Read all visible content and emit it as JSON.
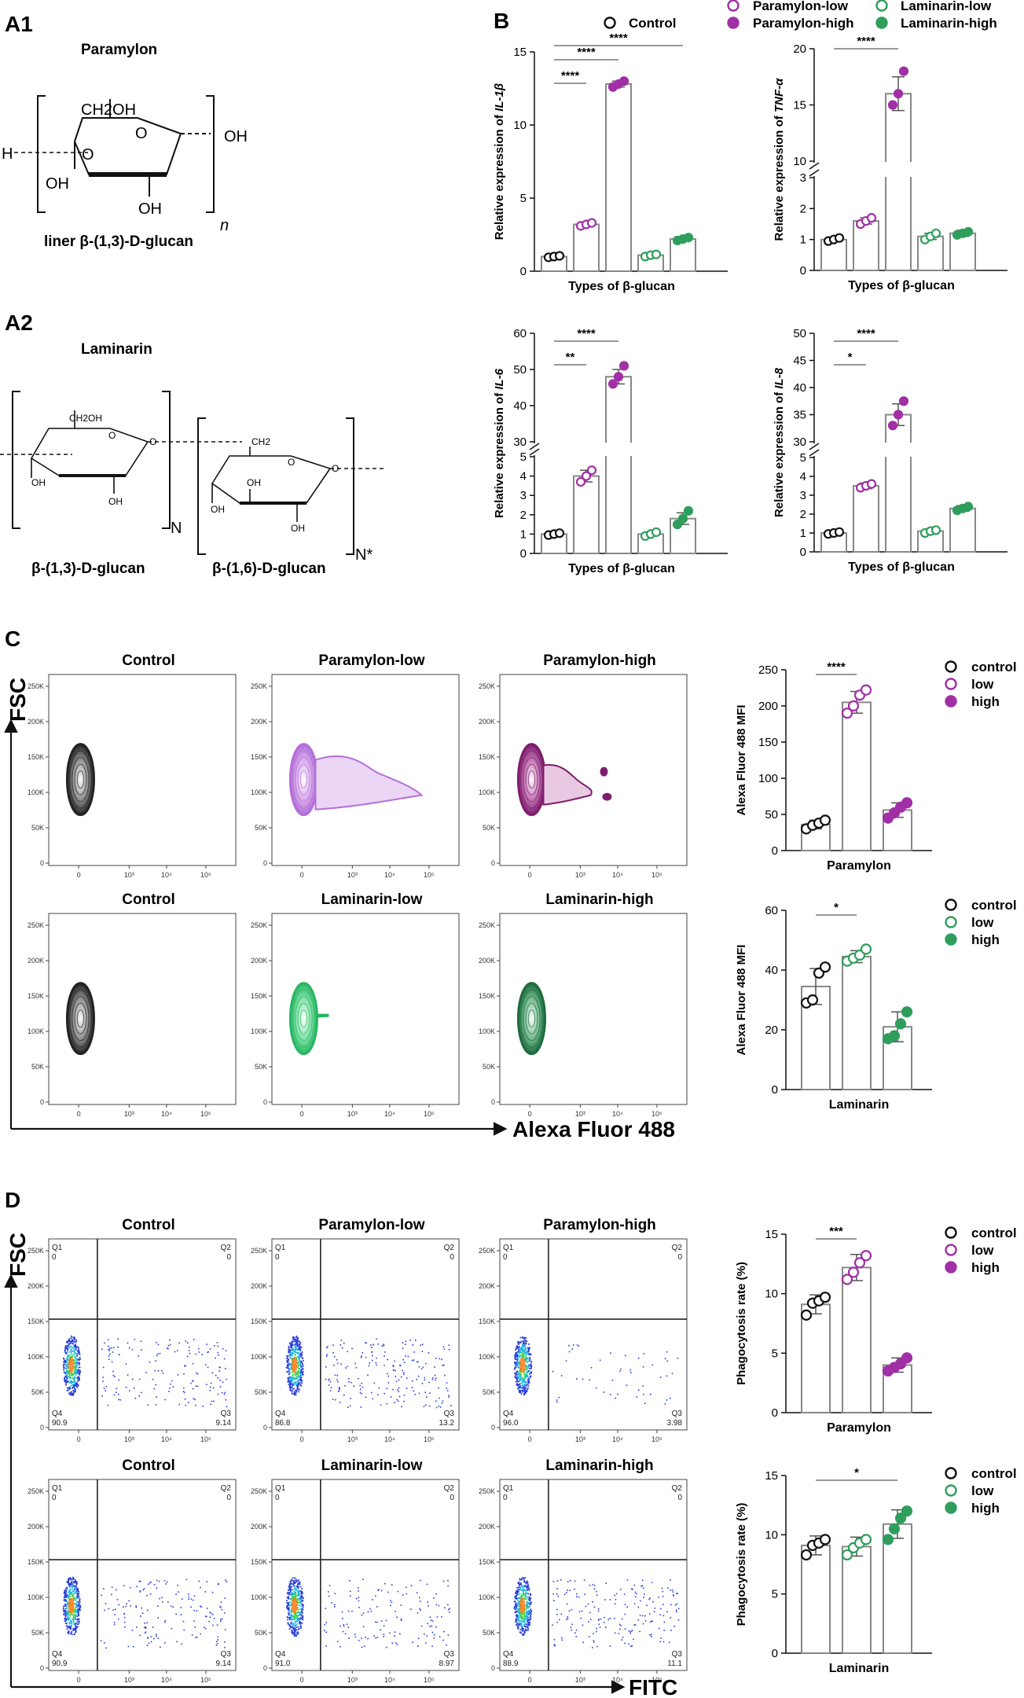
{
  "panel_labels": {
    "a1": "A1",
    "a2": "A2",
    "b": "B",
    "c": "C",
    "d": "D"
  },
  "chem": {
    "paramylon_title": "Paramylon",
    "laminarin_title": "Laminarin",
    "ch2oh": "CH2OH",
    "ch2oh_small": "CH2OH",
    "ch2_small": "CH2",
    "oh": "OH",
    "o": "O",
    "h": "H",
    "n": "n",
    "N": "N",
    "Nstar": "N*",
    "paramylon_caption": "liner β-(1,3)-D-glucan",
    "lam_caption_1": "β-(1,3)-D-glucan",
    "lam_caption_2": "β-(1,6)-D-glucan"
  },
  "colors": {
    "control": "#111111",
    "paramylon": "#a12fa6",
    "laminarin": "#2f9e5c",
    "bar": "#888888",
    "sig": "#777777"
  },
  "legend_b": {
    "control": "Control",
    "paramylon_low": "Paramylon-low",
    "paramylon_high": "Paramylon-high",
    "laminarin_low": "Laminarin-low",
    "laminarin_high": "Laminarin-high"
  },
  "legend_cd": {
    "control": "control",
    "low": "low",
    "high": "high"
  },
  "flow": {
    "c_titles": [
      "Control",
      "Paramylon-low",
      "Paramylon-high",
      "Control",
      "Laminarin-low",
      "Laminarin-high"
    ],
    "d_titles": [
      "Control",
      "Paramylon-low",
      "Paramylon-high",
      "Control",
      "Laminarin-low",
      "Laminarin-high"
    ],
    "y_ticks": [
      "250K",
      "200K",
      "150K",
      "100K",
      "50K",
      "0"
    ],
    "x_ticks": [
      "0",
      "10³",
      "10⁴",
      "10⁵"
    ],
    "fsc": "FSC",
    "alexa": "Alexa Fluor 488",
    "fitc": "FITC",
    "q_labels": [
      "Q1",
      "Q2",
      "Q3",
      "Q4"
    ],
    "quadrants": [
      {
        "q1": "0",
        "q2": "0",
        "q3": "9.14",
        "q4": "90.9"
      },
      {
        "q1": "0",
        "q2": "0",
        "q3": "13.2",
        "q4": "86.8"
      },
      {
        "q1": "0",
        "q2": "0",
        "q3": "3.98",
        "q4": "96.0"
      },
      {
        "q1": "0",
        "q2": "0",
        "q3": "9.14",
        "q4": "90.9"
      },
      {
        "q1": "0",
        "q2": "0",
        "q3": "8.97",
        "q4": "91.0"
      },
      {
        "q1": "0",
        "q2": "0",
        "q3": "11.1",
        "q4": "88.9"
      }
    ]
  },
  "chart_data": [
    {
      "id": "il1b",
      "type": "bar",
      "ylabel": "Relative expression of ",
      "gene": "IL-1β",
      "xlabel": "Types of β-glucan",
      "categories": [
        "Control",
        "Paramylon-low",
        "Paramylon-high",
        "Laminarin-low",
        "Laminarin-high"
      ],
      "values": [
        1.0,
        3.2,
        12.8,
        1.1,
        2.2
      ],
      "errors": [
        0.1,
        0.15,
        0.2,
        0.15,
        0.15
      ],
      "points": [
        [
          0.95,
          1.0,
          1.05
        ],
        [
          3.1,
          3.2,
          3.3
        ],
        [
          12.6,
          12.8,
          13.0
        ],
        [
          1.0,
          1.1,
          1.15
        ],
        [
          2.1,
          2.2,
          2.3
        ]
      ],
      "ylim": [
        0,
        15
      ],
      "yticks": [
        0,
        5,
        10,
        15
      ],
      "sig": [
        {
          "from": 0,
          "to": 1,
          "label": "****"
        },
        {
          "from": 0,
          "to": 2,
          "label": "****"
        },
        {
          "from": 0,
          "to": 4,
          "label": "****"
        }
      ]
    },
    {
      "id": "tnfa",
      "type": "bar",
      "ylabel": "Relative expression of ",
      "gene": "TNF-α",
      "xlabel": "Types of β-glucan",
      "categories": [
        "Control",
        "Paramylon-low",
        "Paramylon-high",
        "Laminarin-low",
        "Laminarin-high"
      ],
      "values": [
        1.0,
        1.6,
        16.0,
        1.1,
        1.2
      ],
      "errors": [
        0.05,
        0.1,
        1.5,
        0.1,
        0.1
      ],
      "points": [
        [
          0.95,
          1.0,
          1.05
        ],
        [
          1.5,
          1.6,
          1.7
        ],
        [
          15.0,
          16.0,
          18.0
        ],
        [
          1.0,
          1.1,
          1.2
        ],
        [
          1.15,
          1.2,
          1.25
        ]
      ],
      "axis_break": {
        "lower": [
          0,
          3
        ],
        "upper": [
          10,
          20
        ]
      },
      "yticks_lower": [
        0,
        1,
        2,
        3
      ],
      "yticks_upper": [
        10,
        15,
        20
      ],
      "sig": [
        {
          "from": 0,
          "to": 2,
          "label": "****"
        }
      ]
    },
    {
      "id": "il6",
      "type": "bar",
      "ylabel": "Relative expression of ",
      "gene": "IL-6",
      "xlabel": "Types of β-glucan",
      "categories": [
        "Control",
        "Paramylon-low",
        "Paramylon-high",
        "Laminarin-low",
        "Laminarin-high"
      ],
      "values": [
        1.0,
        4.0,
        48.0,
        1.0,
        1.8
      ],
      "errors": [
        0.1,
        0.3,
        2.0,
        0.1,
        0.3
      ],
      "points": [
        [
          0.95,
          1.0,
          1.05
        ],
        [
          3.7,
          4.0,
          4.3
        ],
        [
          46.0,
          48.0,
          51.0
        ],
        [
          0.9,
          1.0,
          1.1
        ],
        [
          1.5,
          1.8,
          2.2
        ]
      ],
      "axis_break": {
        "lower": [
          0,
          5
        ],
        "upper": [
          30,
          60
        ]
      },
      "yticks_lower": [
        0,
        1,
        2,
        3,
        4,
        5
      ],
      "yticks_upper": [
        30,
        40,
        50,
        60
      ],
      "sig": [
        {
          "from": 0,
          "to": 1,
          "label": "**"
        },
        {
          "from": 0,
          "to": 2,
          "label": "****"
        }
      ]
    },
    {
      "id": "il8",
      "type": "bar",
      "ylabel": "Relative expression of ",
      "gene": "IL-8",
      "xlabel": "Types of β-glucan",
      "categories": [
        "Control",
        "Paramylon-low",
        "Paramylon-high",
        "Laminarin-low",
        "Laminarin-high"
      ],
      "values": [
        1.0,
        3.5,
        35.0,
        1.1,
        2.3
      ],
      "errors": [
        0.1,
        0.15,
        2.0,
        0.1,
        0.15
      ],
      "points": [
        [
          0.95,
          1.0,
          1.05
        ],
        [
          3.4,
          3.5,
          3.6
        ],
        [
          33.0,
          35.0,
          37.5
        ],
        [
          1.0,
          1.1,
          1.15
        ],
        [
          2.2,
          2.3,
          2.4
        ]
      ],
      "axis_break": {
        "lower": [
          0,
          5
        ],
        "upper": [
          30,
          50
        ]
      },
      "yticks_lower": [
        0,
        1,
        2,
        3,
        4,
        5
      ],
      "yticks_upper": [
        30,
        35,
        40,
        45,
        50
      ],
      "sig": [
        {
          "from": 0,
          "to": 1,
          "label": "*"
        },
        {
          "from": 0,
          "to": 2,
          "label": "****"
        }
      ]
    },
    {
      "id": "mfi_par",
      "type": "bar",
      "ylabel": "Alexa Fluor 488 MFI",
      "xlabel": "Paramylon",
      "categories": [
        "control",
        "low",
        "high"
      ],
      "values": [
        36,
        205,
        56
      ],
      "errors": [
        6,
        15,
        10
      ],
      "points": [
        [
          30,
          35,
          38,
          42
        ],
        [
          190,
          200,
          215,
          222
        ],
        [
          45,
          52,
          60,
          66
        ]
      ],
      "ylim": [
        0,
        250
      ],
      "yticks": [
        0,
        50,
        100,
        150,
        200,
        250
      ],
      "sig": [
        {
          "from": 0,
          "to": 1,
          "label": "****"
        }
      ]
    },
    {
      "id": "mfi_lam",
      "type": "bar",
      "ylabel": "Alexa Fluor 488 MFI",
      "xlabel": "Laminarin",
      "categories": [
        "control",
        "low",
        "high"
      ],
      "values": [
        34.5,
        44.5,
        21
      ],
      "errors": [
        6,
        2,
        5
      ],
      "points": [
        [
          29,
          30,
          39,
          41
        ],
        [
          43,
          44,
          45,
          47
        ],
        [
          17,
          18,
          22,
          26
        ]
      ],
      "ylim": [
        0,
        60
      ],
      "yticks": [
        0,
        20,
        40,
        60
      ],
      "sig": [
        {
          "from": 0,
          "to": 1,
          "label": "*"
        }
      ]
    },
    {
      "id": "phago_par",
      "type": "bar",
      "ylabel": "Phagocytosis rate (%)",
      "xlabel": "Paramylon",
      "categories": [
        "control",
        "low",
        "high"
      ],
      "values": [
        9.1,
        12.2,
        4.0
      ],
      "errors": [
        0.8,
        1.1,
        0.6
      ],
      "points": [
        [
          8.2,
          9.2,
          9.4,
          9.7
        ],
        [
          11.2,
          11.8,
          12.6,
          13.2
        ],
        [
          3.5,
          3.8,
          4.1,
          4.6
        ]
      ],
      "ylim": [
        0,
        15
      ],
      "yticks": [
        0,
        5,
        10,
        15
      ],
      "sig": [
        {
          "from": 0,
          "to": 1,
          "label": "***"
        }
      ]
    },
    {
      "id": "phago_lam",
      "type": "bar",
      "ylabel": "Phagocytosis rate (%)",
      "xlabel": "Laminarin",
      "categories": [
        "control",
        "low",
        "high"
      ],
      "values": [
        9.1,
        9.0,
        10.9
      ],
      "errors": [
        0.8,
        0.8,
        1.2
      ],
      "points": [
        [
          8.3,
          9.1,
          9.3,
          9.6
        ],
        [
          8.3,
          8.9,
          9.3,
          9.6
        ],
        [
          9.6,
          10.5,
          11.4,
          12.0
        ]
      ],
      "ylim": [
        0,
        15
      ],
      "yticks": [
        0,
        5,
        10,
        15
      ],
      "sig": [
        {
          "from": 0,
          "to": 2,
          "label": "*"
        }
      ]
    }
  ]
}
